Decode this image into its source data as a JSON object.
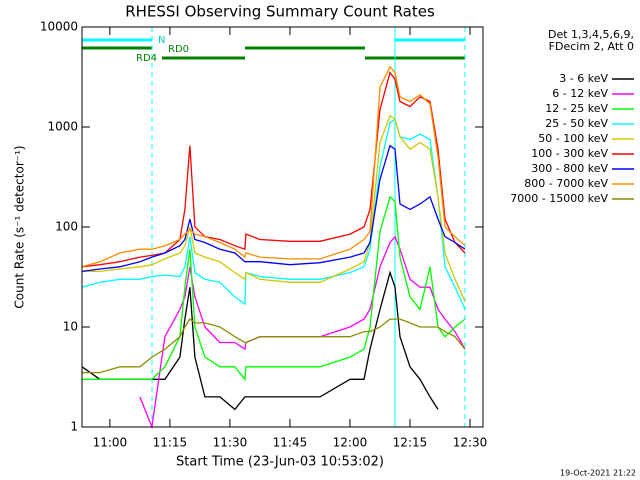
{
  "chart_data": {
    "type": "line",
    "title": "RHESSI Observing Summary Count Rates",
    "x_label": "Start Time (23-Jun-03 10:53:02)",
    "y_label": "Count Rate (s⁻¹ detector⁻¹)",
    "legend_header": [
      "Det 1,3,4,5,6,9,",
      "FDecim 2, Att 0"
    ],
    "footer": "19-Oct-2021 21:22",
    "annotations": [
      "N",
      "RD0",
      "RD4"
    ],
    "y_scale": "log",
    "xlim": [
      653.03,
      753.25
    ],
    "ylim": [
      1,
      10000
    ],
    "yticks": [
      1,
      10,
      100,
      1000,
      10000
    ],
    "xticks": [
      {
        "value": 660,
        "label": "11:00"
      },
      {
        "value": 675,
        "label": "11:15"
      },
      {
        "value": 690,
        "label": "11:30"
      },
      {
        "value": 705,
        "label": "11:45"
      },
      {
        "value": 720,
        "label": "12:00"
      },
      {
        "value": 735,
        "label": "12:15"
      },
      {
        "value": 750,
        "label": "12:30"
      }
    ],
    "x": [
      653.03,
      657.5,
      662.5,
      667.5,
      670.5,
      673.75,
      677.5,
      678.75,
      680,
      681.25,
      683.75,
      687.5,
      691.25,
      693.75,
      694,
      697.5,
      705,
      712.5,
      720,
      723.5,
      725,
      727.5,
      730,
      731.25,
      732.5,
      735,
      737.5,
      740,
      742,
      743.75,
      746.25,
      748.75
    ],
    "series": [
      {
        "name": "3 - 6 keV",
        "color": "#000000",
        "values": [
          4,
          3,
          3,
          3,
          3,
          3,
          5,
          12,
          25,
          5,
          2,
          2,
          1.5,
          2,
          2,
          2,
          2,
          2,
          3,
          3,
          6,
          15,
          35,
          25,
          8,
          4,
          3,
          2,
          1.5,
          null,
          null,
          null
        ]
      },
      {
        "name": "6 - 12 keV",
        "color": "#ff00ff",
        "values": [
          null,
          null,
          null,
          2,
          1,
          8,
          15,
          20,
          40,
          20,
          10,
          7,
          7,
          6,
          7,
          8,
          8,
          8,
          10,
          12,
          15,
          40,
          70,
          80,
          60,
          30,
          25,
          25,
          15,
          12,
          9,
          6
        ]
      },
      {
        "name": "12 - 25 keV",
        "color": "#00ff00",
        "values": [
          3,
          3,
          3,
          3,
          3,
          4,
          8,
          25,
          60,
          10,
          5,
          4,
          4,
          3,
          4,
          4,
          4,
          4,
          5,
          6,
          10,
          90,
          200,
          180,
          50,
          20,
          15,
          40,
          10,
          8,
          10,
          12
        ]
      },
      {
        "name": "25 - 50 keV",
        "color": "#00ffff",
        "values": [
          25,
          28,
          30,
          30,
          32,
          33,
          32,
          40,
          80,
          35,
          30,
          28,
          20,
          17,
          35,
          32,
          30,
          30,
          35,
          40,
          60,
          400,
          1100,
          1200,
          800,
          750,
          850,
          750,
          200,
          40,
          25,
          15
        ]
      },
      {
        "name": "50 - 100 keV",
        "color": "#d2c800",
        "values": [
          36,
          36,
          38,
          40,
          42,
          48,
          55,
          65,
          100,
          55,
          50,
          45,
          35,
          30,
          35,
          30,
          28,
          28,
          38,
          45,
          70,
          700,
          1300,
          1200,
          800,
          600,
          700,
          600,
          200,
          55,
          30,
          18
        ]
      },
      {
        "name": "100 - 300 keV",
        "color": "#ff0000",
        "values": [
          40,
          42,
          45,
          50,
          52,
          55,
          75,
          150,
          650,
          100,
          80,
          75,
          65,
          60,
          85,
          75,
          72,
          72,
          85,
          100,
          150,
          1500,
          3500,
          3000,
          1800,
          1600,
          2000,
          1800,
          600,
          120,
          70,
          55
        ]
      },
      {
        "name": "300 - 800 keV",
        "color": "#0000ff",
        "values": [
          36,
          38,
          40,
          45,
          50,
          55,
          65,
          75,
          120,
          75,
          70,
          60,
          55,
          45,
          45,
          45,
          42,
          44,
          50,
          55,
          70,
          300,
          650,
          600,
          170,
          150,
          170,
          200,
          120,
          80,
          70,
          60
        ]
      },
      {
        "name": "800 - 7000 keV",
        "color": "#ff8c00",
        "values": [
          40,
          45,
          55,
          60,
          60,
          65,
          75,
          85,
          95,
          85,
          80,
          70,
          60,
          50,
          55,
          50,
          48,
          48,
          60,
          75,
          90,
          2500,
          4000,
          3500,
          2000,
          1800,
          2100,
          1700,
          500,
          100,
          80,
          65
        ]
      },
      {
        "name": "7000 - 15000 keV",
        "color": "#8c8c00",
        "values": [
          3.5,
          3.5,
          4,
          4,
          5,
          6,
          8,
          10,
          12,
          11,
          11,
          10,
          8,
          7,
          7,
          8,
          8,
          8,
          8,
          9,
          9,
          10,
          12,
          12,
          12,
          11,
          10,
          10,
          10,
          9,
          8,
          6
        ]
      }
    ]
  }
}
